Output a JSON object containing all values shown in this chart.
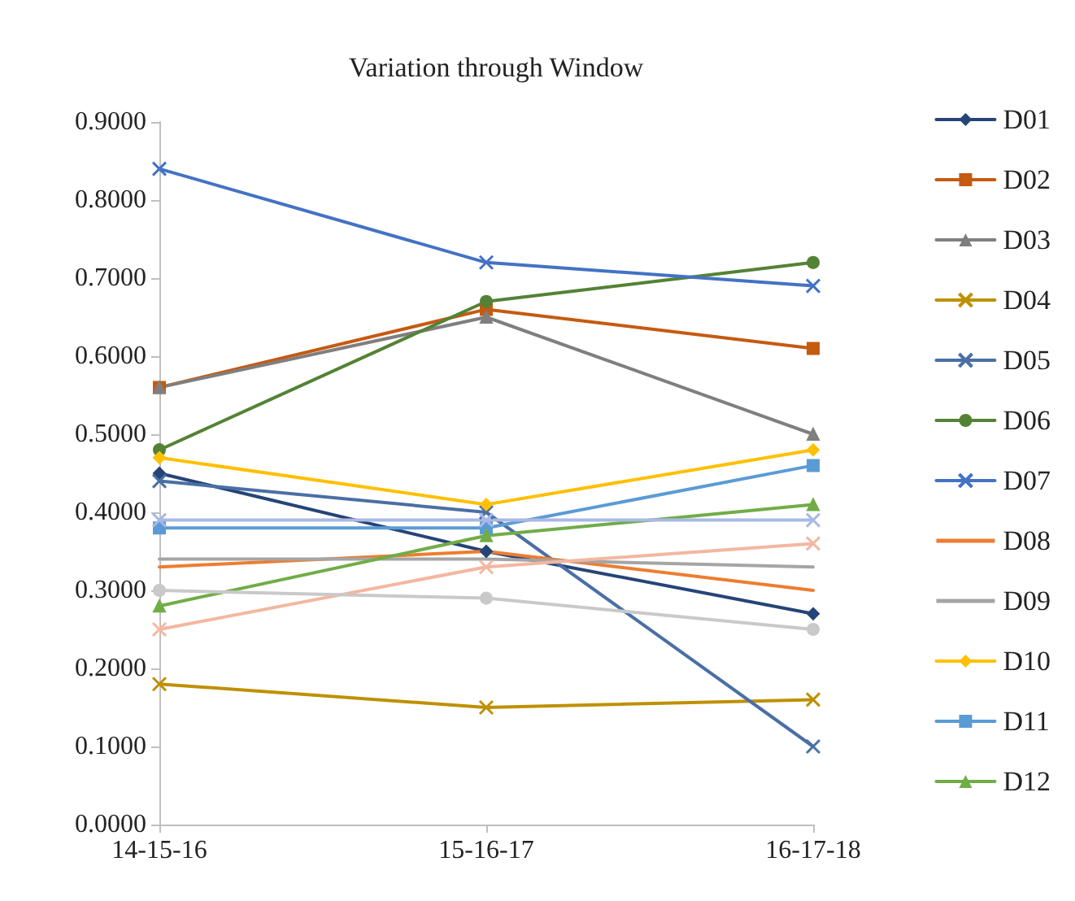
{
  "chart_data": {
    "type": "line",
    "title": "Variation through Window",
    "categories": [
      "14-15-16",
      "15-16-17",
      "16-17-18"
    ],
    "ylim": [
      0,
      0.9
    ],
    "yticks": [
      {
        "value": 0,
        "label": "0.0000"
      },
      {
        "value": 0.1,
        "label": "0.1000"
      },
      {
        "value": 0.2,
        "label": "0.2000"
      },
      {
        "value": 0.3,
        "label": "0.3000"
      },
      {
        "value": 0.4,
        "label": "0.4000"
      },
      {
        "value": 0.5,
        "label": "0.5000"
      },
      {
        "value": 0.6,
        "label": "0.6000"
      },
      {
        "value": 0.7,
        "label": "0.7000"
      },
      {
        "value": 0.8,
        "label": "0.8000"
      },
      {
        "value": 0.9,
        "label": "0.9000"
      }
    ],
    "grid": false,
    "legend": "right",
    "line_style": "solid",
    "series": [
      {
        "name": "D01",
        "color": "#264478",
        "marker": "diamond",
        "values": [
          0.45,
          0.35,
          0.27
        ]
      },
      {
        "name": "D02",
        "color": "#c55a11",
        "marker": "square",
        "values": [
          0.56,
          0.66,
          0.61
        ]
      },
      {
        "name": "D03",
        "color": "#7f7f7f",
        "marker": "triangle",
        "values": [
          0.56,
          0.65,
          0.5
        ]
      },
      {
        "name": "D04",
        "color": "#bf9000",
        "marker": "cross",
        "values": [
          0.18,
          0.15,
          0.16
        ]
      },
      {
        "name": "D05",
        "color": "#4a6fa5",
        "marker": "cross",
        "values": [
          0.44,
          0.4,
          0.1
        ]
      },
      {
        "name": "D06",
        "color": "#548235",
        "marker": "circle",
        "values": [
          0.48,
          0.67,
          0.72
        ]
      },
      {
        "name": "D07",
        "color": "#4472c4",
        "marker": "cross",
        "values": [
          0.84,
          0.72,
          0.69
        ]
      },
      {
        "name": "D08",
        "color": "#ed7d31",
        "marker": "none",
        "values": [
          0.33,
          0.35,
          0.3
        ]
      },
      {
        "name": "D09",
        "color": "#a5a5a5",
        "marker": "none",
        "values": [
          0.34,
          0.34,
          0.33
        ]
      },
      {
        "name": "D10",
        "color": "#ffc000",
        "marker": "diamond",
        "values": [
          0.47,
          0.41,
          0.48
        ]
      },
      {
        "name": "D11",
        "color": "#5b9bd5",
        "marker": "square",
        "values": [
          0.38,
          0.38,
          0.46
        ]
      },
      {
        "name": "D12",
        "color": "#70ad47",
        "marker": "triangle",
        "values": [
          0.28,
          0.37,
          0.41
        ]
      },
      {
        "color": "#a9b8e6",
        "marker": "cross",
        "values": [
          0.39,
          0.39,
          0.39
        ]
      },
      {
        "color": "#f4b6a0",
        "marker": "cross",
        "values": [
          0.25,
          0.33,
          0.36
        ]
      },
      {
        "color": "#c9c9c9",
        "marker": "circle",
        "values": [
          0.3,
          0.29,
          0.25
        ]
      }
    ]
  }
}
